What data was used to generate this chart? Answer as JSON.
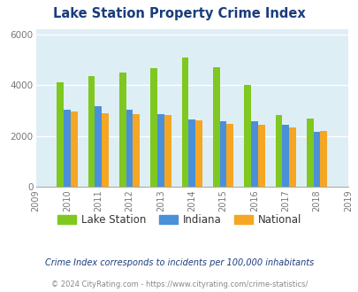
{
  "title": "Lake Station Property Crime Index",
  "years": [
    2009,
    2010,
    2011,
    2012,
    2013,
    2014,
    2015,
    2016,
    2017,
    2018,
    2019
  ],
  "bar_years": [
    2010,
    2011,
    2012,
    2013,
    2014,
    2015,
    2016,
    2017,
    2018
  ],
  "lake_station": [
    4100,
    4350,
    4480,
    4680,
    5070,
    4700,
    4020,
    2820,
    2700
  ],
  "indiana": [
    3020,
    3160,
    3030,
    2870,
    2650,
    2570,
    2580,
    2430,
    2160
  ],
  "national": [
    2950,
    2900,
    2870,
    2840,
    2600,
    2490,
    2450,
    2350,
    2200
  ],
  "ylim": [
    0,
    6200
  ],
  "yticks": [
    0,
    2000,
    4000,
    6000
  ],
  "color_lake": "#7ec820",
  "color_indiana": "#4a90d9",
  "color_national": "#f5a623",
  "bg_color": "#deeef5",
  "title_color": "#1a3d7c",
  "footnote1": "Crime Index corresponds to incidents per 100,000 inhabitants",
  "footnote2": "© 2024 CityRating.com - https://www.cityrating.com/crime-statistics/",
  "bar_width": 0.22
}
